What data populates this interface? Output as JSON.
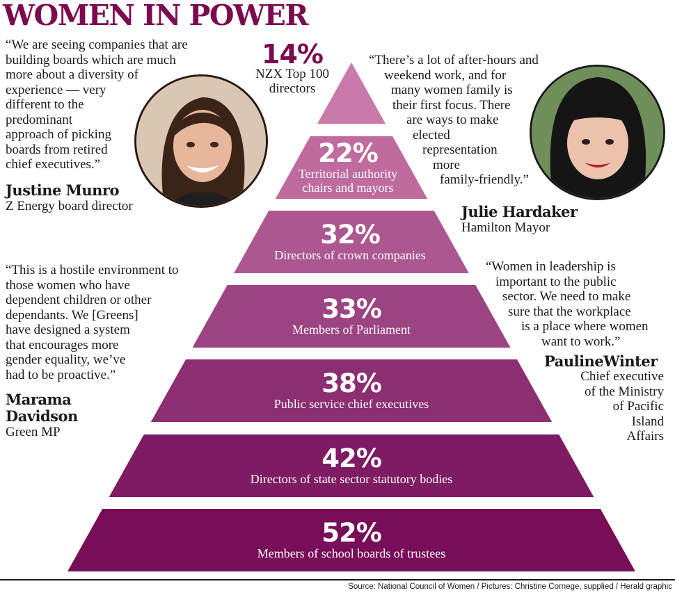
{
  "title": "WOMEN IN POWER",
  "chart_data": {
    "type": "pyramid",
    "tiers": [
      {
        "value": "14%",
        "label": "NZX Top 100 directors"
      },
      {
        "value": "22%",
        "label": "Territorial authority chairs and mayors"
      },
      {
        "value": "32%",
        "label": "Directors of crown companies"
      },
      {
        "value": "33%",
        "label": "Members of Parliament"
      },
      {
        "value": "38%",
        "label": "Public service chief executives"
      },
      {
        "value": "42%",
        "label": "Directors of state sector statutory bodies"
      },
      {
        "value": "52%",
        "label": "Members of school boards of trustees"
      }
    ]
  },
  "tier_labels": {
    "t0_line1": "NZX Top 100",
    "t0_line2": "directors",
    "t1_line1": "Territorial authority",
    "t1_line2": "chairs and mayors"
  },
  "colors": {
    "tiers": [
      "#c97aa8",
      "#bf6b9d",
      "#ad5790",
      "#9c4482",
      "#8c2f72",
      "#7e1b63",
      "#780d58"
    ],
    "title": "#7c0a4e"
  },
  "people": {
    "justine": {
      "quote_lines": [
        "“We are seeing companies that are",
        "building boards which are much",
        "more about a diversity of",
        "experience — very",
        "different to the",
        "predominant",
        "approach of picking",
        "boards from retired",
        "chief executives.”"
      ],
      "name": "Justine Munro",
      "role": "Z Energy board director"
    },
    "julie": {
      "quote_lines": [
        "“There’s a lot of after-hours and",
        "weekend work, and for",
        "many women family is",
        "their first focus. There",
        "are ways to make",
        "elected",
        "representation",
        "more",
        "family-friendly.”"
      ],
      "name": "Julie Hardaker",
      "role": "Hamilton Mayor"
    },
    "marama": {
      "quote_lines": [
        "“This is a hostile environment to",
        "those women who have",
        "dependent children or other",
        "dependants. We [Greens]",
        "have designed a system",
        "that encourages more",
        "gender equality, we’ve",
        "had to be proactive.”"
      ],
      "name_line1": "Marama",
      "name_line2": "Davidson",
      "role": "Green MP"
    },
    "pauline": {
      "quote_lines": [
        "“Women in leadership is",
        "important to the public",
        "sector. We need to make",
        "sure that the workplace",
        "is a place where women",
        "want to work.”"
      ],
      "name": "PaulineWinter",
      "role_lines": [
        "Chief executive",
        "of the Ministry",
        "of Pacific",
        "Island",
        "Affairs"
      ]
    }
  },
  "source": "Source: National Council of Women / Pictures: Christine Cornege, supplied / Herald graphic"
}
